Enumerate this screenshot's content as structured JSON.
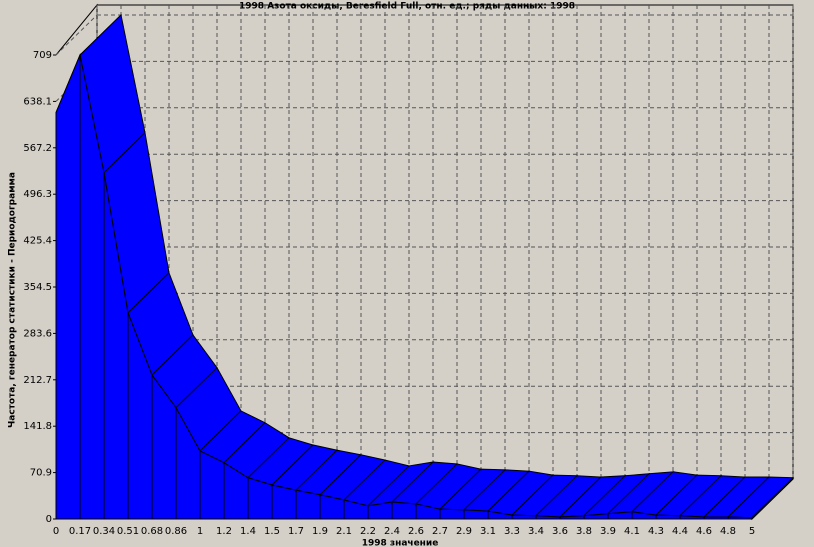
{
  "chart_data": {
    "type": "area3d",
    "title": "1998 Азота оксиды, Beresfield Full, отн. ед.; ряды данных: 1998",
    "x_label": "1998 значение",
    "y_label": "Частота, генератор статистики - Периодограмма",
    "color": "#0000ff",
    "grid": true,
    "categories": [
      "0",
      "0.17",
      "0.34",
      "0.51",
      "0.68",
      "0.86",
      "1",
      "1.2",
      "1.4",
      "1.5",
      "1.7",
      "1.9",
      "2.1",
      "2.2",
      "2.4",
      "2.6",
      "2.7",
      "2.9",
      "3.1",
      "3.3",
      "3.4",
      "3.6",
      "3.8",
      "3.9",
      "4.1",
      "4.3",
      "4.4",
      "4.6",
      "4.8",
      "5"
    ],
    "values": [
      621,
      709,
      529,
      315,
      220,
      170,
      104,
      86,
      63,
      52,
      44,
      37,
      29,
      20,
      26,
      23,
      15,
      14,
      12,
      6,
      5,
      3,
      5,
      8,
      11,
      6,
      5,
      3,
      3,
      2
    ],
    "ylim": [
      0,
      709
    ],
    "yticks": [
      0,
      70.9,
      141.8,
      212.7,
      283.6,
      354.5,
      425.4,
      496.3,
      567.2,
      638.1,
      709
    ]
  }
}
